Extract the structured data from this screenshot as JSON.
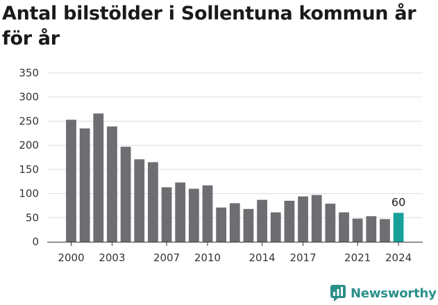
{
  "title": "Antal bilstölder i Sollentuna kommun år för år",
  "brand": {
    "name": "Newsworthy",
    "color": "#2a8f88",
    "icon": "newsworthy-logo-icon"
  },
  "chart_data": {
    "type": "bar",
    "title": "Antal bilstölder i Sollentuna kommun år för år",
    "xlabel": "",
    "ylabel": "",
    "categories": [
      "2000",
      "2001",
      "2002",
      "2003",
      "2004",
      "2005",
      "2006",
      "2007",
      "2008",
      "2009",
      "2010",
      "2011",
      "2012",
      "2013",
      "2014",
      "2015",
      "2016",
      "2017",
      "2018",
      "2019",
      "2020",
      "2021",
      "2022",
      "2023",
      "2024"
    ],
    "values": [
      253,
      235,
      266,
      239,
      197,
      171,
      165,
      113,
      123,
      110,
      117,
      71,
      80,
      68,
      87,
      61,
      85,
      94,
      97,
      79,
      61,
      48,
      53,
      47,
      60
    ],
    "ylim": [
      0,
      350
    ],
    "yticks": [
      "0",
      "50",
      "100",
      "150",
      "200",
      "250",
      "300",
      "350"
    ],
    "xtick_labels": [
      "2000",
      "2003",
      "2007",
      "2010",
      "2014",
      "2017",
      "2021",
      "2024"
    ],
    "grid": true,
    "bar_color": "#6e6d72",
    "highlight_color": "#17a09a",
    "highlight_category": "2024",
    "data_labels": [
      {
        "category": "2024",
        "text": "60"
      }
    ]
  }
}
